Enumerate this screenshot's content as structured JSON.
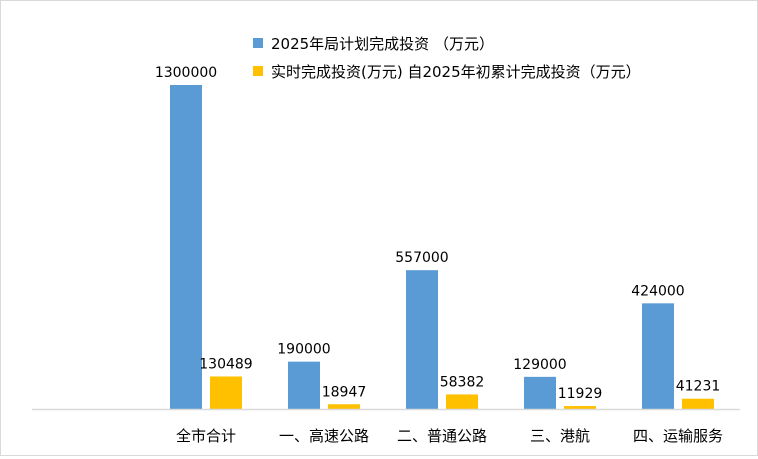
{
  "chart_data": {
    "type": "bar",
    "title": "",
    "xlabel": "",
    "ylabel": "",
    "categories": [
      "全市合计",
      "一、高速公路",
      "二、普通公路",
      "三、港航",
      "四、运输服务"
    ],
    "series": [
      {
        "name": "2025年局计划完成投资 （万元）",
        "color": "#5b9bd5",
        "values": [
          1300000,
          190000,
          557000,
          129000,
          424000
        ]
      },
      {
        "name": "实时完成投资(万元) 自2025年初累计完成投资（万元）",
        "color": "#ffc000",
        "values": [
          130489,
          18947,
          58382,
          11929,
          41231
        ]
      }
    ],
    "ylim": [
      0,
      1300000
    ],
    "grid": false,
    "data_labels": true,
    "legend_placement": "top-right"
  }
}
